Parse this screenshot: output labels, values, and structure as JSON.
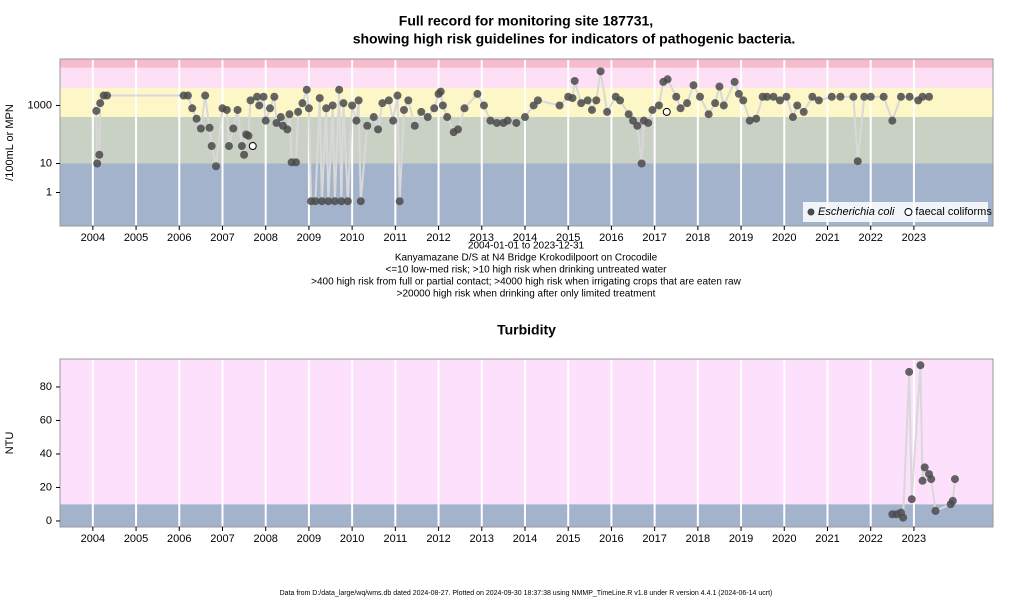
{
  "title": "Full record for monitoring site 187731,",
  "subtitle": "showing high risk guidelines for indicators of pathogenic bacteria.",
  "footer": "Data from D:/data_large/wq/wms.db dated 2024-08-27. Plotted on 2024-09-30 18:37:38 using NMMP_TimeLine.R v1.8 under R version 4.4.1 (2024-06-14 ucrt)",
  "chart_data": [
    {
      "type": "line",
      "ylabel": "/100mL or MPN",
      "log_y": true,
      "xlim": [
        2003.24,
        2024.83
      ],
      "xticks": [
        2004,
        2005,
        2006,
        2007,
        2008,
        2009,
        2010,
        2011,
        2012,
        2013,
        2014,
        2015,
        2016,
        2017,
        2018,
        2019,
        2020,
        2021,
        2022,
        2023
      ],
      "ylim": [
        0.07,
        40000
      ],
      "yticks": [
        1,
        10,
        1000
      ],
      "band_breaks": [
        10,
        400,
        4000,
        20000
      ],
      "band_colors": [
        "#a3b3cc",
        "#c9d1c4",
        "#fdf7c8",
        "#fde0f5",
        "#f7bccb"
      ],
      "legend": "lower right",
      "grid": true,
      "notes": [
        "2004-01-01 to 2023-12-31",
        "Kanyamazane D/S at N4 Bridge Krokodilpoort on Crocodile",
        "<=10 low-med risk; >10 high risk when drinking untreated water",
        ">400 high risk from full or partial contact; >4000 high risk when irrigating crops that are eaten raw",
        ">20000 high risk when drinking after only limited treatment"
      ],
      "series": [
        {
          "name": "Escherichia coli",
          "color": "#4a4a4a",
          "line": true,
          "x": [
            2004.08,
            2004.1,
            2004.15,
            2004.17,
            2004.25,
            2004.33,
            2006.1,
            2006.2,
            2006.3,
            2006.4,
            2006.5,
            2006.6,
            2006.7,
            2006.75,
            2006.85,
            2007.0,
            2007.1,
            2007.15,
            2007.25,
            2007.35,
            2007.45,
            2007.5,
            2007.55,
            2007.6,
            2007.65,
            2007.8,
            2007.85,
            2007.95,
            2008.0,
            2008.1,
            2008.2,
            2008.25,
            2008.35,
            2008.4,
            2008.5,
            2008.55,
            2008.6,
            2008.7,
            2008.75,
            2008.85,
            2008.95,
            2009.0,
            2009.05,
            2009.15,
            2009.25,
            2009.3,
            2009.4,
            2009.45,
            2009.55,
            2009.6,
            2009.7,
            2009.75,
            2009.8,
            2009.9,
            2010.0,
            2010.1,
            2010.15,
            2010.2,
            2010.35,
            2010.5,
            2010.6,
            2010.7,
            2010.85,
            2010.95,
            2011.05,
            2011.1,
            2011.2,
            2011.3,
            2011.45,
            2011.6,
            2011.75,
            2011.9,
            2012.0,
            2012.05,
            2012.1,
            2012.2,
            2012.35,
            2012.45,
            2012.6,
            2012.9,
            2013.05,
            2013.2,
            2013.35,
            2013.5,
            2013.6,
            2013.8,
            2014.0,
            2014.2,
            2014.3,
            2014.8,
            2015.0,
            2015.1,
            2015.15,
            2015.3,
            2015.45,
            2015.55,
            2015.65,
            2015.75,
            2015.9,
            2016.1,
            2016.2,
            2016.4,
            2016.5,
            2016.6,
            2016.7,
            2016.75,
            2016.85,
            2016.95,
            2017.1,
            2017.2,
            2017.3,
            2017.5,
            2017.6,
            2017.75,
            2017.9,
            2018.05,
            2018.25,
            2018.4,
            2018.5,
            2018.6,
            2018.85,
            2018.95,
            2019.05,
            2019.2,
            2019.35,
            2019.5,
            2019.6,
            2019.75,
            2019.9,
            2020.05,
            2020.2,
            2020.3,
            2020.45,
            2020.65,
            2020.8,
            2021.1,
            2021.3,
            2021.6,
            2021.7,
            2021.85,
            2022.0,
            2022.3,
            2022.5,
            2022.7,
            2022.9,
            2023.1,
            2023.2,
            2023.35
          ],
          "values": [
            650,
            10,
            20,
            1200,
            2200,
            2200,
            2200,
            2200,
            800,
            350,
            160,
            2200,
            170,
            40,
            8,
            800,
            700,
            40,
            160,
            700,
            40,
            20,
            100,
            90,
            1500,
            2000,
            1000,
            2000,
            300,
            800,
            2000,
            250,
            400,
            200,
            150,
            500,
            11,
            11,
            600,
            1200,
            3500,
            800,
            0.5,
            0.5,
            1800,
            0.5,
            800,
            0.5,
            1000,
            0.5,
            3500,
            0.5,
            1200,
            0.5,
            1000,
            300,
            1500,
            0.5,
            200,
            400,
            150,
            1200,
            1500,
            300,
            2200,
            0.5,
            700,
            1500,
            200,
            600,
            400,
            800,
            2500,
            3000,
            1000,
            400,
            120,
            150,
            800,
            2500,
            1000,
            300,
            250,
            250,
            300,
            250,
            400,
            1000,
            1500,
            1000,
            2000,
            1800,
            7000,
            1200,
            1500,
            700,
            1500,
            15000,
            600,
            2000,
            1500,
            500,
            300,
            200,
            10,
            300,
            250,
            700,
            1000,
            6500,
            8000,
            2000,
            800,
            1200,
            5000,
            2000,
            500,
            1200,
            4500,
            1000,
            6500,
            2500,
            1500,
            300,
            350,
            2000,
            2000,
            2000,
            1500,
            2000,
            400,
            1000,
            600,
            2000,
            1500,
            2000,
            2000,
            2000,
            12,
            2000,
            2000,
            2000,
            300,
            2000,
            2000,
            1500,
            2000,
            2000
          ]
        },
        {
          "name": "faecal coliforms",
          "color": "#ffffff",
          "line": false,
          "x": [
            2007.7,
            2017.28
          ],
          "values": [
            40,
            600
          ]
        }
      ]
    },
    {
      "type": "line",
      "title": "Turbidity",
      "ylabel": "NTU",
      "log_y": false,
      "xlim": [
        2003.24,
        2024.83
      ],
      "xticks": [
        2004,
        2005,
        2006,
        2007,
        2008,
        2009,
        2010,
        2011,
        2012,
        2013,
        2014,
        2015,
        2016,
        2017,
        2018,
        2019,
        2020,
        2021,
        2022,
        2023
      ],
      "ylim": [
        -3.6,
        96.7
      ],
      "yticks": [
        0,
        20,
        40,
        60,
        80
      ],
      "band_breaks": [
        10
      ],
      "band_colors": [
        "#a3b3cc",
        "#fde0fc"
      ],
      "grid": true,
      "series": [
        {
          "name": "Turbidity",
          "color": "#4a4a4a",
          "line": true,
          "x": [
            2022.5,
            2022.6,
            2022.7,
            2022.75,
            2022.89,
            2022.95,
            2023.15,
            2023.2,
            2023.25,
            2023.35,
            2023.4,
            2023.5,
            2023.85,
            2023.9,
            2023.95
          ],
          "values": [
            4,
            4,
            5,
            2,
            89,
            13,
            93,
            24,
            32,
            28,
            25,
            6,
            10,
            12,
            25
          ]
        }
      ]
    }
  ]
}
